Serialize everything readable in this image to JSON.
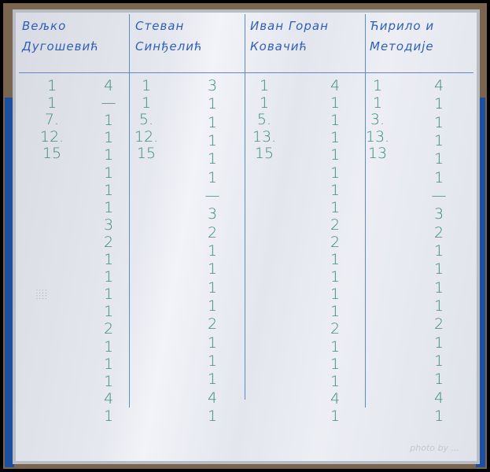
{
  "columns": [
    {
      "header": "Вељко Дугошевић",
      "left": [
        "1",
        "1",
        "7.",
        "12.",
        "15"
      ],
      "right": [
        "4",
        "—",
        "1",
        "1",
        "1",
        "1",
        "1",
        "1",
        "3",
        "2",
        "1",
        "1",
        "1",
        "1",
        "2",
        "1",
        "1",
        "1",
        "4",
        "1"
      ]
    },
    {
      "header": "Стеван Синђелић",
      "left": [
        "1",
        "1",
        "5.",
        "12.",
        "15"
      ],
      "right": [
        "3",
        "1",
        "1",
        "1",
        "1",
        "1",
        "—",
        "3",
        "2",
        "1",
        "1",
        "1",
        "1",
        "2",
        "1",
        "1",
        "1",
        "4",
        "1"
      ]
    },
    {
      "header": "Иван Горан Ковачић",
      "left": [
        "1",
        "1",
        "5.",
        "13.",
        "15"
      ],
      "right": [
        "4",
        "1",
        "1",
        "1",
        "1",
        "1",
        "1",
        "1",
        "2",
        "2",
        "1",
        "1",
        "1",
        "1",
        "2",
        "1",
        "1",
        "1",
        "4",
        "1"
      ]
    },
    {
      "header": "Ћирило и Методије",
      "left": [
        "1",
        "1",
        "3.",
        "13.",
        "13"
      ],
      "right": [
        "4",
        "1",
        "1",
        "1",
        "1",
        "1",
        "—",
        "3",
        "2",
        "1",
        "1",
        "1",
        "1",
        "2",
        "1",
        "1",
        "1",
        "4",
        "1"
      ]
    }
  ],
  "watermark": "photo by ...",
  "colors": {
    "marker_header": "#2f5fb5",
    "marker_numbers": "#3a8d7a",
    "frame": "#1d4fa0"
  }
}
